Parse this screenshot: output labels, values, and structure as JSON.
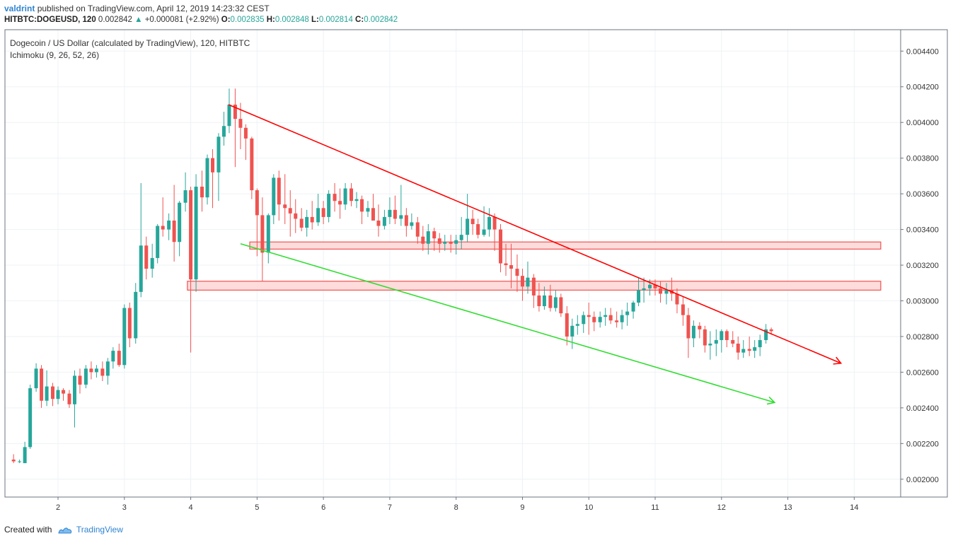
{
  "header": {
    "author": "valdrint",
    "published_text": "published on TradingView.com, April 12, 2019 14:23:32 CEST",
    "symbol": "HITBTC:DOGEUSD, 120",
    "last": "0.002842",
    "change": "+0.000081 (+2.92%)",
    "o_label": "O:",
    "o_value": "0.002835",
    "h_label": "H:",
    "h_value": "0.002848",
    "l_label": "L:",
    "l_value": "0.002814",
    "c_label": "C:",
    "c_value": "0.002842"
  },
  "legend": {
    "title": "Dogecoin / US Dollar (calculated by TradingView), 120, HITBTC",
    "indicator": "Ichimoku (9, 26, 52, 26)"
  },
  "footer": {
    "created_with": "Created with",
    "brand": "TradingView"
  },
  "colors": {
    "up": "#26a69a",
    "down": "#ef5350",
    "resistance": "#ff0000",
    "support": "#33dd33",
    "zone_fill": "#ffd6d6",
    "zone_stroke": "#ef5350",
    "grid": "#eef2f6"
  },
  "chart_data": {
    "type": "candlestick",
    "title": "Dogecoin / US Dollar (calculated by TradingView), 120, HITBTC",
    "x_unit": "day of April 2019",
    "xlim": [
      1.2,
      14.7
    ],
    "ylim": [
      0.0019,
      0.00452
    ],
    "x_ticks": [
      2,
      3,
      4,
      5,
      6,
      7,
      8,
      9,
      10,
      11,
      12,
      13,
      14
    ],
    "y_ticks": [
      0.002,
      0.0022,
      0.0024,
      0.0026,
      0.0028,
      0.003,
      0.0032,
      0.0034,
      0.0036,
      0.0038,
      0.004,
      0.0042,
      0.0044
    ],
    "y_tick_labels": [
      "0.002000",
      "0.002200",
      "0.002400",
      "0.002600",
      "0.002800",
      "0.003000",
      "0.003200",
      "0.003400",
      "0.003600",
      "0.003800",
      "0.004000",
      "0.004200",
      "0.004400"
    ],
    "grid": true,
    "candles": [
      [
        1.33,
        0.00211,
        0.00214,
        0.00209,
        0.0021
      ],
      [
        1.42,
        0.0021,
        0.00211,
        0.00209,
        0.0021
      ],
      [
        1.5,
        0.00209,
        0.00221,
        0.00209,
        0.00218
      ],
      [
        1.58,
        0.00218,
        0.00253,
        0.00217,
        0.00251
      ],
      [
        1.67,
        0.00251,
        0.00265,
        0.00249,
        0.00262
      ],
      [
        1.75,
        0.00262,
        0.00264,
        0.0024,
        0.00244
      ],
      [
        1.83,
        0.00244,
        0.00261,
        0.00241,
        0.00252
      ],
      [
        1.92,
        0.00252,
        0.00254,
        0.00241,
        0.00245
      ],
      [
        2.0,
        0.00245,
        0.00252,
        0.00242,
        0.0025
      ],
      [
        2.08,
        0.0025,
        0.00251,
        0.00244,
        0.00248
      ],
      [
        2.17,
        0.00248,
        0.0025,
        0.0024,
        0.00242
      ],
      [
        2.25,
        0.00242,
        0.00261,
        0.00229,
        0.00258
      ],
      [
        2.33,
        0.00258,
        0.00262,
        0.00248,
        0.00253
      ],
      [
        2.42,
        0.00253,
        0.00264,
        0.00251,
        0.00262
      ],
      [
        2.5,
        0.00262,
        0.00266,
        0.00256,
        0.0026
      ],
      [
        2.58,
        0.0026,
        0.00264,
        0.00257,
        0.00262
      ],
      [
        2.67,
        0.00262,
        0.00266,
        0.00255,
        0.00258
      ],
      [
        2.75,
        0.00258,
        0.00268,
        0.00253,
        0.00266
      ],
      [
        2.83,
        0.00266,
        0.00274,
        0.00262,
        0.00272
      ],
      [
        2.92,
        0.00272,
        0.00276,
        0.00263,
        0.00264
      ],
      [
        3.0,
        0.00264,
        0.00298,
        0.00262,
        0.00296
      ],
      [
        3.08,
        0.00296,
        0.00299,
        0.00274,
        0.00279
      ],
      [
        3.17,
        0.00279,
        0.0031,
        0.00276,
        0.00305
      ],
      [
        3.25,
        0.00305,
        0.00366,
        0.00302,
        0.00331
      ],
      [
        3.33,
        0.00331,
        0.00336,
        0.00312,
        0.00318
      ],
      [
        3.42,
        0.00318,
        0.00332,
        0.00313,
        0.00324
      ],
      [
        3.5,
        0.00324,
        0.00343,
        0.00321,
        0.00342
      ],
      [
        3.58,
        0.00342,
        0.00358,
        0.00336,
        0.0034
      ],
      [
        3.67,
        0.0034,
        0.00349,
        0.00334,
        0.00345
      ],
      [
        3.75,
        0.00345,
        0.00365,
        0.00322,
        0.00333
      ],
      [
        3.83,
        0.00333,
        0.00356,
        0.00325,
        0.00355
      ],
      [
        3.92,
        0.00355,
        0.00372,
        0.0035,
        0.00362
      ],
      [
        4.0,
        0.00362,
        0.00364,
        0.00271,
        0.00312
      ],
      [
        4.08,
        0.00312,
        0.00371,
        0.00305,
        0.00364
      ],
      [
        4.17,
        0.00364,
        0.00373,
        0.0035,
        0.00358
      ],
      [
        4.25,
        0.00358,
        0.00382,
        0.00354,
        0.0038
      ],
      [
        4.33,
        0.0038,
        0.00385,
        0.00352,
        0.00372
      ],
      [
        4.42,
        0.00372,
        0.00394,
        0.00356,
        0.00392
      ],
      [
        4.5,
        0.00392,
        0.00406,
        0.00387,
        0.00398
      ],
      [
        4.58,
        0.00398,
        0.00419,
        0.00394,
        0.0041
      ],
      [
        4.67,
        0.0041,
        0.00419,
        0.00375,
        0.00402
      ],
      [
        4.75,
        0.00402,
        0.00411,
        0.00385,
        0.00397
      ],
      [
        4.83,
        0.00397,
        0.00399,
        0.00379,
        0.00391
      ],
      [
        4.92,
        0.00391,
        0.00392,
        0.00357,
        0.00362
      ],
      [
        5.0,
        0.00362,
        0.00363,
        0.00325,
        0.00348
      ],
      [
        5.08,
        0.00348,
        0.00358,
        0.00311,
        0.00327
      ],
      [
        5.17,
        0.00327,
        0.00349,
        0.00321,
        0.00348
      ],
      [
        5.25,
        0.00348,
        0.00371,
        0.00343,
        0.00369
      ],
      [
        5.33,
        0.00369,
        0.00373,
        0.00345,
        0.00354
      ],
      [
        5.42,
        0.00354,
        0.00371,
        0.00343,
        0.00352
      ],
      [
        5.5,
        0.00352,
        0.00362,
        0.00336,
        0.00349
      ],
      [
        5.58,
        0.00349,
        0.00357,
        0.00338,
        0.00346
      ],
      [
        5.67,
        0.00346,
        0.00352,
        0.00339,
        0.00341
      ],
      [
        5.75,
        0.00341,
        0.00351,
        0.00336,
        0.00347
      ],
      [
        5.83,
        0.00347,
        0.00356,
        0.0034,
        0.00344
      ],
      [
        5.92,
        0.00344,
        0.0036,
        0.00342,
        0.00352
      ],
      [
        6.0,
        0.00352,
        0.00356,
        0.00343,
        0.00347
      ],
      [
        6.08,
        0.00347,
        0.00362,
        0.00344,
        0.0036
      ],
      [
        6.17,
        0.0036,
        0.00366,
        0.0035,
        0.00356
      ],
      [
        6.25,
        0.00356,
        0.00363,
        0.00346,
        0.00354
      ],
      [
        6.33,
        0.00354,
        0.00366,
        0.00351,
        0.00363
      ],
      [
        6.42,
        0.00363,
        0.00366,
        0.00353,
        0.00356
      ],
      [
        6.5,
        0.00356,
        0.00361,
        0.00352,
        0.00357
      ],
      [
        6.58,
        0.00357,
        0.00359,
        0.00343,
        0.0035
      ],
      [
        6.67,
        0.0035,
        0.00356,
        0.00347,
        0.00352
      ],
      [
        6.75,
        0.00352,
        0.0036,
        0.00347,
        0.00345
      ],
      [
        6.83,
        0.00345,
        0.00354,
        0.00336,
        0.00342
      ],
      [
        6.92,
        0.00342,
        0.00351,
        0.0034,
        0.00347
      ],
      [
        7.0,
        0.00347,
        0.00358,
        0.00343,
        0.00351
      ],
      [
        7.08,
        0.00351,
        0.00359,
        0.00343,
        0.00346
      ],
      [
        7.17,
        0.00346,
        0.00365,
        0.00342,
        0.00348
      ],
      [
        7.25,
        0.00348,
        0.00352,
        0.00336,
        0.00342
      ],
      [
        7.33,
        0.00342,
        0.00349,
        0.0034,
        0.00344
      ],
      [
        7.42,
        0.00344,
        0.00347,
        0.00332,
        0.00336
      ],
      [
        7.5,
        0.00336,
        0.00342,
        0.00328,
        0.00332
      ],
      [
        7.58,
        0.00332,
        0.00343,
        0.00326,
        0.00339
      ],
      [
        7.67,
        0.00339,
        0.00341,
        0.00328,
        0.00335
      ],
      [
        7.75,
        0.00335,
        0.00338,
        0.00327,
        0.00332
      ],
      [
        7.83,
        0.00332,
        0.00337,
        0.00328,
        0.00333
      ],
      [
        7.92,
        0.00333,
        0.00337,
        0.00327,
        0.00332
      ],
      [
        8.0,
        0.00332,
        0.00337,
        0.00326,
        0.00334
      ],
      [
        8.08,
        0.00334,
        0.00347,
        0.00329,
        0.00337
      ],
      [
        8.17,
        0.00337,
        0.0036,
        0.00333,
        0.00346
      ],
      [
        8.25,
        0.00346,
        0.00351,
        0.00337,
        0.00343
      ],
      [
        8.33,
        0.00343,
        0.00346,
        0.00335,
        0.00337
      ],
      [
        8.42,
        0.00337,
        0.00353,
        0.00336,
        0.0034
      ],
      [
        8.5,
        0.0034,
        0.00352,
        0.00336,
        0.00347
      ],
      [
        8.58,
        0.00347,
        0.00349,
        0.00328,
        0.0034
      ],
      [
        8.67,
        0.0034,
        0.00343,
        0.00316,
        0.00321
      ],
      [
        8.75,
        0.00321,
        0.00332,
        0.00314,
        0.0032
      ],
      [
        8.83,
        0.0032,
        0.00332,
        0.00307,
        0.00318
      ],
      [
        8.92,
        0.00318,
        0.00326,
        0.00305,
        0.00314
      ],
      [
        9.0,
        0.00314,
        0.00318,
        0.003,
        0.00308
      ],
      [
        9.08,
        0.00308,
        0.00322,
        0.00304,
        0.00313
      ],
      [
        9.17,
        0.00313,
        0.00315,
        0.00296,
        0.00303
      ],
      [
        9.25,
        0.00303,
        0.0031,
        0.00294,
        0.00297
      ],
      [
        9.33,
        0.00297,
        0.00308,
        0.00295,
        0.00303
      ],
      [
        9.42,
        0.00303,
        0.00309,
        0.00294,
        0.00296
      ],
      [
        9.5,
        0.00296,
        0.00306,
        0.00294,
        0.00302
      ],
      [
        9.58,
        0.00302,
        0.00304,
        0.00291,
        0.00293
      ],
      [
        9.67,
        0.00293,
        0.00297,
        0.00275,
        0.0028
      ],
      [
        9.75,
        0.0028,
        0.0029,
        0.00273,
        0.00286
      ],
      [
        9.83,
        0.00286,
        0.00292,
        0.00281,
        0.00287
      ],
      [
        9.92,
        0.00287,
        0.00294,
        0.00282,
        0.00292
      ],
      [
        10.0,
        0.00292,
        0.00299,
        0.00281,
        0.00291
      ],
      [
        10.08,
        0.00291,
        0.00294,
        0.00283,
        0.00288
      ],
      [
        10.17,
        0.00288,
        0.00294,
        0.00285,
        0.00291
      ],
      [
        10.25,
        0.00291,
        0.00296,
        0.00286,
        0.00292
      ],
      [
        10.33,
        0.00292,
        0.00296,
        0.00287,
        0.00289
      ],
      [
        10.42,
        0.00289,
        0.00294,
        0.00285,
        0.00288
      ],
      [
        10.5,
        0.00288,
        0.00295,
        0.00284,
        0.00292
      ],
      [
        10.58,
        0.00292,
        0.00299,
        0.00286,
        0.00294
      ],
      [
        10.67,
        0.00294,
        0.003,
        0.0029,
        0.00299
      ],
      [
        10.75,
        0.00299,
        0.00313,
        0.00297,
        0.00306
      ],
      [
        10.83,
        0.00306,
        0.00313,
        0.00299,
        0.00307
      ],
      [
        10.92,
        0.00307,
        0.00312,
        0.00303,
        0.00309
      ],
      [
        11.0,
        0.00309,
        0.00312,
        0.00303,
        0.00307
      ],
      [
        11.08,
        0.00307,
        0.00311,
        0.00299,
        0.00304
      ],
      [
        11.17,
        0.00304,
        0.0031,
        0.00298,
        0.00306
      ],
      [
        11.25,
        0.00306,
        0.00313,
        0.003,
        0.00304
      ],
      [
        11.33,
        0.00304,
        0.00307,
        0.00293,
        0.00298
      ],
      [
        11.42,
        0.00298,
        0.00302,
        0.00286,
        0.00292
      ],
      [
        11.5,
        0.00292,
        0.00296,
        0.00268,
        0.00279
      ],
      [
        11.58,
        0.00279,
        0.00289,
        0.00274,
        0.00286
      ],
      [
        11.67,
        0.00286,
        0.00288,
        0.00279,
        0.00284
      ],
      [
        11.75,
        0.00284,
        0.00286,
        0.00271,
        0.00275
      ],
      [
        11.83,
        0.00275,
        0.00283,
        0.00267,
        0.00276
      ],
      [
        11.92,
        0.00276,
        0.00284,
        0.00269,
        0.00278
      ],
      [
        12.0,
        0.00278,
        0.00284,
        0.00271,
        0.00283
      ],
      [
        12.08,
        0.00283,
        0.00284,
        0.00274,
        0.00278
      ],
      [
        12.17,
        0.00278,
        0.00283,
        0.00274,
        0.00276
      ],
      [
        12.25,
        0.00276,
        0.0028,
        0.00267,
        0.00271
      ],
      [
        12.33,
        0.00271,
        0.00278,
        0.00268,
        0.00273
      ],
      [
        12.42,
        0.00273,
        0.0028,
        0.00269,
        0.00272
      ],
      [
        12.5,
        0.00272,
        0.00278,
        0.00268,
        0.00274
      ],
      [
        12.58,
        0.00274,
        0.00281,
        0.00269,
        0.00278
      ],
      [
        12.67,
        0.00278,
        0.00287,
        0.00276,
        0.00284
      ],
      [
        12.75,
        0.00284,
        0.00285,
        0.00281,
        0.00283
      ]
    ],
    "annotations": {
      "resistance_line": [
        [
          4.57,
          0.0041
        ],
        [
          13.8,
          0.00265
        ]
      ],
      "support_line": [
        [
          4.75,
          0.00332
        ],
        [
          12.8,
          0.00243
        ]
      ],
      "zones": [
        {
          "x": [
            4.89,
            14.4
          ],
          "y": [
            0.00329,
            0.00333
          ]
        },
        {
          "x": [
            3.95,
            14.4
          ],
          "y": [
            0.00306,
            0.00311
          ]
        }
      ]
    }
  }
}
